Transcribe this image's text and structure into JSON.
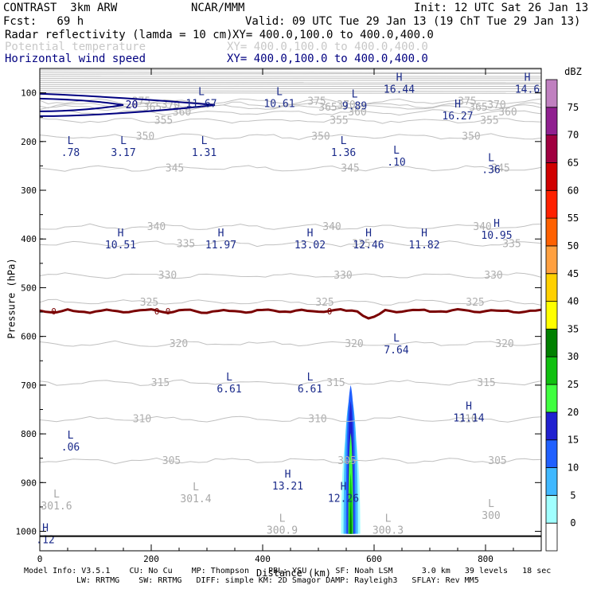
{
  "header": {
    "program": "CONTRAST  3km ARW",
    "center": "NCAR/MMM",
    "init": "Init: 12 UTC Sat 26 Jan 13",
    "fcst": "Fcst:   69 h",
    "valid": "Valid: 09 UTC Tue 29 Jan 13 (19 ChT Tue 29 Jan 13)",
    "fields": [
      {
        "name": "Radar reflectivity (lamda = 10 cm)",
        "xy": "XY= 400.0,100.0 to 400.0,400.0",
        "color": "#000000"
      },
      {
        "name": "Potential temperature",
        "xy": "XY= 400.0,100.0 to 400.0,400.0",
        "color": "#c8c8c8"
      },
      {
        "name": "Horizontal wind speed",
        "xy": "XY= 400.0,100.0 to 400.0,400.0",
        "color": "#000080"
      }
    ]
  },
  "footer": {
    "line1": "Model Info: V3.5.1    CU: No Cu    MP: Thompson    PBL: YSU      SF: Noah LSM      3.0 km   39 levels   18 sec",
    "line2": "LW: RRTMG    SW: RRTMG   DIFF: simple KM: 2D Smagor DAMP: Rayleigh3   SFLAY: Rev MM5"
  },
  "chart_data": {
    "type": "cross-section",
    "xlabel": "Distance (km)",
    "ylabel": "Pressure (hPa)",
    "xlim": [
      0,
      900
    ],
    "ylim": [
      1040,
      50
    ],
    "xticks": [
      0,
      200,
      400,
      600,
      800
    ],
    "yticks": [
      100,
      200,
      300,
      400,
      500,
      600,
      700,
      800,
      900,
      1000
    ],
    "colorbar": {
      "unit": "dBZ",
      "levels": [
        0,
        5,
        10,
        15,
        20,
        25,
        30,
        35,
        40,
        45,
        50,
        55,
        60,
        65,
        70,
        75
      ],
      "colors": [
        "#ffffff",
        "#a0ffff",
        "#40b8ff",
        "#2060ff",
        "#2020d0",
        "#40ff40",
        "#10c010",
        "#008000",
        "#ffff00",
        "#ffd000",
        "#ffa040",
        "#ff6000",
        "#ff2000",
        "#d00000",
        "#a00040",
        "#902090",
        "#c080c0"
      ]
    },
    "theta_contours": [
      {
        "value": 375,
        "p": 118
      },
      {
        "value": 370,
        "p": 125
      },
      {
        "value": 365,
        "p": 130
      },
      {
        "value": 360,
        "p": 140
      },
      {
        "value": 355,
        "p": 157
      },
      {
        "value": 350,
        "p": 190
      },
      {
        "value": 345,
        "p": 255
      },
      {
        "value": 340,
        "p": 375
      },
      {
        "value": 335,
        "p": 410
      },
      {
        "value": 330,
        "p": 475
      },
      {
        "value": 325,
        "p": 530
      },
      {
        "value": 320,
        "p": 615
      },
      {
        "value": 315,
        "p": 695
      },
      {
        "value": 310,
        "p": 770
      },
      {
        "value": 305,
        "p": 855
      }
    ],
    "wind_contours": [
      {
        "value": 20,
        "label": "20"
      },
      {
        "value": 0,
        "label": "0"
      }
    ],
    "extrema": [
      {
        "type": "L",
        "value": "11.67",
        "x": 290,
        "p": 105
      },
      {
        "type": "L",
        "value": "10.61",
        "x": 430,
        "p": 105
      },
      {
        "type": "L",
        "value": "9.89",
        "x": 565,
        "p": 110
      },
      {
        "type": "H",
        "value": "16.44",
        "x": 645,
        "p": 75
      },
      {
        "type": "H",
        "value": "14.6",
        "x": 875,
        "p": 75
      },
      {
        "type": "H",
        "value": "16.27",
        "x": 750,
        "p": 130
      },
      {
        "type": "L",
        "value": ".78",
        "x": 55,
        "p": 205
      },
      {
        "type": "L",
        "value": "3.17",
        "x": 150,
        "p": 205
      },
      {
        "type": "L",
        "value": "1.31",
        "x": 295,
        "p": 205
      },
      {
        "type": "L",
        "value": "1.36",
        "x": 545,
        "p": 205
      },
      {
        "type": "L",
        "value": ".10",
        "x": 640,
        "p": 225
      },
      {
        "type": "L",
        "value": ".36",
        "x": 810,
        "p": 240
      },
      {
        "type": "H",
        "value": "10.51",
        "x": 145,
        "p": 395
      },
      {
        "type": "H",
        "value": "11.97",
        "x": 325,
        "p": 395
      },
      {
        "type": "H",
        "value": "13.02",
        "x": 485,
        "p": 395
      },
      {
        "type": "H",
        "value": "12.46",
        "x": 590,
        "p": 395
      },
      {
        "type": "H",
        "value": "11.82",
        "x": 690,
        "p": 395
      },
      {
        "type": "H",
        "value": "10.95",
        "x": 820,
        "p": 375
      },
      {
        "type": "L",
        "value": "7.64",
        "x": 640,
        "p": 610
      },
      {
        "type": "L",
        "value": "6.61",
        "x": 340,
        "p": 690
      },
      {
        "type": "L",
        "value": "6.61",
        "x": 485,
        "p": 690
      },
      {
        "type": "H",
        "value": "11.14",
        "x": 770,
        "p": 750
      },
      {
        "type": "L",
        "value": ".06",
        "x": 55,
        "p": 810
      },
      {
        "type": "H",
        "value": "13.21",
        "x": 445,
        "p": 890
      },
      {
        "type": "H",
        "value": "12.26",
        "x": 545,
        "p": 915
      },
      {
        "type": "H",
        "value": ".12",
        "x": 10,
        "p": 1000
      }
    ],
    "surface_theta_labels": [
      {
        "value": "301.6",
        "x": 30,
        "p": 955
      },
      {
        "value": "301.4",
        "x": 280,
        "p": 940
      },
      {
        "value": "300.9",
        "x": 435,
        "p": 1005
      },
      {
        "value": "300.3",
        "x": 625,
        "p": 1005
      },
      {
        "value": "300",
        "x": 810,
        "p": 975
      }
    ],
    "reflectivity_plume": {
      "x_center": 558,
      "p_top": 700,
      "p_bottom": 1005
    }
  }
}
